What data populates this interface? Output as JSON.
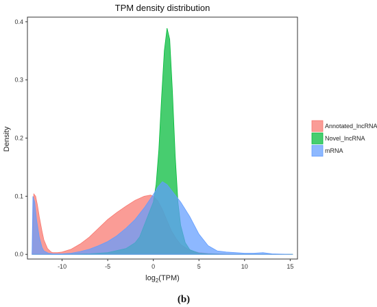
{
  "chart_data": {
    "type": "area",
    "title": "TPM density distribution",
    "xlabel_main": "log",
    "xlabel_sub": "2",
    "xlabel_rest": "(TPM)",
    "ylabel": "Density",
    "xlim": [
      -13.8,
      15.8
    ],
    "ylim": [
      -0.008,
      0.408
    ],
    "x_ticks": [
      -10,
      -5,
      0,
      5,
      10,
      15
    ],
    "x_tick_labels": [
      "-10",
      "-5",
      "0",
      "5",
      "10",
      "15"
    ],
    "y_ticks": [
      0.0,
      0.1,
      0.2,
      0.3,
      0.4
    ],
    "y_tick_labels": [
      "0.0",
      "0.1",
      "0.2",
      "0.3",
      "0.4"
    ],
    "grid": false,
    "legend_position": "right",
    "series": [
      {
        "name": "Annotated_lncRNA",
        "color": "#F8766D",
        "x": [
          -13.3,
          -13.1,
          -12.9,
          -12.7,
          -12.5,
          -12.2,
          -12.0,
          -11.6,
          -11.2,
          -11.0,
          -10.5,
          -10.0,
          -9.0,
          -8.0,
          -7.0,
          -6.0,
          -5.0,
          -4.0,
          -3.0,
          -2.0,
          -1.0,
          -0.3,
          0.0,
          0.5,
          1.0,
          1.5,
          2.0,
          2.5,
          3.0,
          4.0,
          5.0,
          6.0,
          7.0,
          8.0,
          10.0,
          12.0,
          15.3
        ],
        "y": [
          0.0,
          0.104,
          0.1,
          0.085,
          0.065,
          0.04,
          0.025,
          0.01,
          0.004,
          0.003,
          0.003,
          0.004,
          0.009,
          0.018,
          0.03,
          0.045,
          0.06,
          0.072,
          0.083,
          0.093,
          0.1,
          0.102,
          0.1,
          0.092,
          0.077,
          0.058,
          0.04,
          0.027,
          0.017,
          0.007,
          0.003,
          0.0015,
          0.001,
          0.0005,
          0.0,
          0.0,
          0.0
        ]
      },
      {
        "name": "Novel_lncRNA",
        "color": "#00BA38",
        "x": [
          -13.3,
          -10.0,
          -7.0,
          -5.0,
          -3.0,
          -2.0,
          -1.5,
          -1.0,
          -0.5,
          0.0,
          0.3,
          0.6,
          0.9,
          1.2,
          1.5,
          1.8,
          2.1,
          2.4,
          2.7,
          3.0,
          3.5,
          4.0,
          5.0,
          6.0,
          8.0,
          10.0,
          12.0,
          15.3
        ],
        "y": [
          0.0,
          0.0,
          0.001,
          0.003,
          0.01,
          0.02,
          0.03,
          0.05,
          0.07,
          0.09,
          0.12,
          0.18,
          0.27,
          0.35,
          0.389,
          0.37,
          0.28,
          0.17,
          0.09,
          0.05,
          0.02,
          0.008,
          0.002,
          0.001,
          0.0,
          0.0,
          0.0,
          0.0
        ]
      },
      {
        "name": "mRNA",
        "color": "#619CFF",
        "x": [
          -13.3,
          -13.2,
          -13.0,
          -12.8,
          -12.5,
          -12.2,
          -12.0,
          -11.5,
          -11.0,
          -10.0,
          -9.0,
          -8.0,
          -7.0,
          -6.0,
          -5.0,
          -4.0,
          -3.0,
          -2.0,
          -1.0,
          0.0,
          0.5,
          1.0,
          1.5,
          2.0,
          3.0,
          4.0,
          5.0,
          6.0,
          7.0,
          8.0,
          9.0,
          10.0,
          11.0,
          12.0,
          12.5,
          13.0,
          14.0,
          15.3
        ],
        "y": [
          0.0,
          0.1,
          0.09,
          0.06,
          0.03,
          0.012,
          0.006,
          0.002,
          0.001,
          0.001,
          0.002,
          0.005,
          0.009,
          0.015,
          0.022,
          0.032,
          0.045,
          0.06,
          0.08,
          0.103,
          0.116,
          0.125,
          0.12,
          0.11,
          0.09,
          0.065,
          0.035,
          0.015,
          0.006,
          0.004,
          0.003,
          0.002,
          0.002,
          0.003,
          0.002,
          0.001,
          0.0005,
          0.0
        ]
      }
    ],
    "caption": "(b)"
  }
}
